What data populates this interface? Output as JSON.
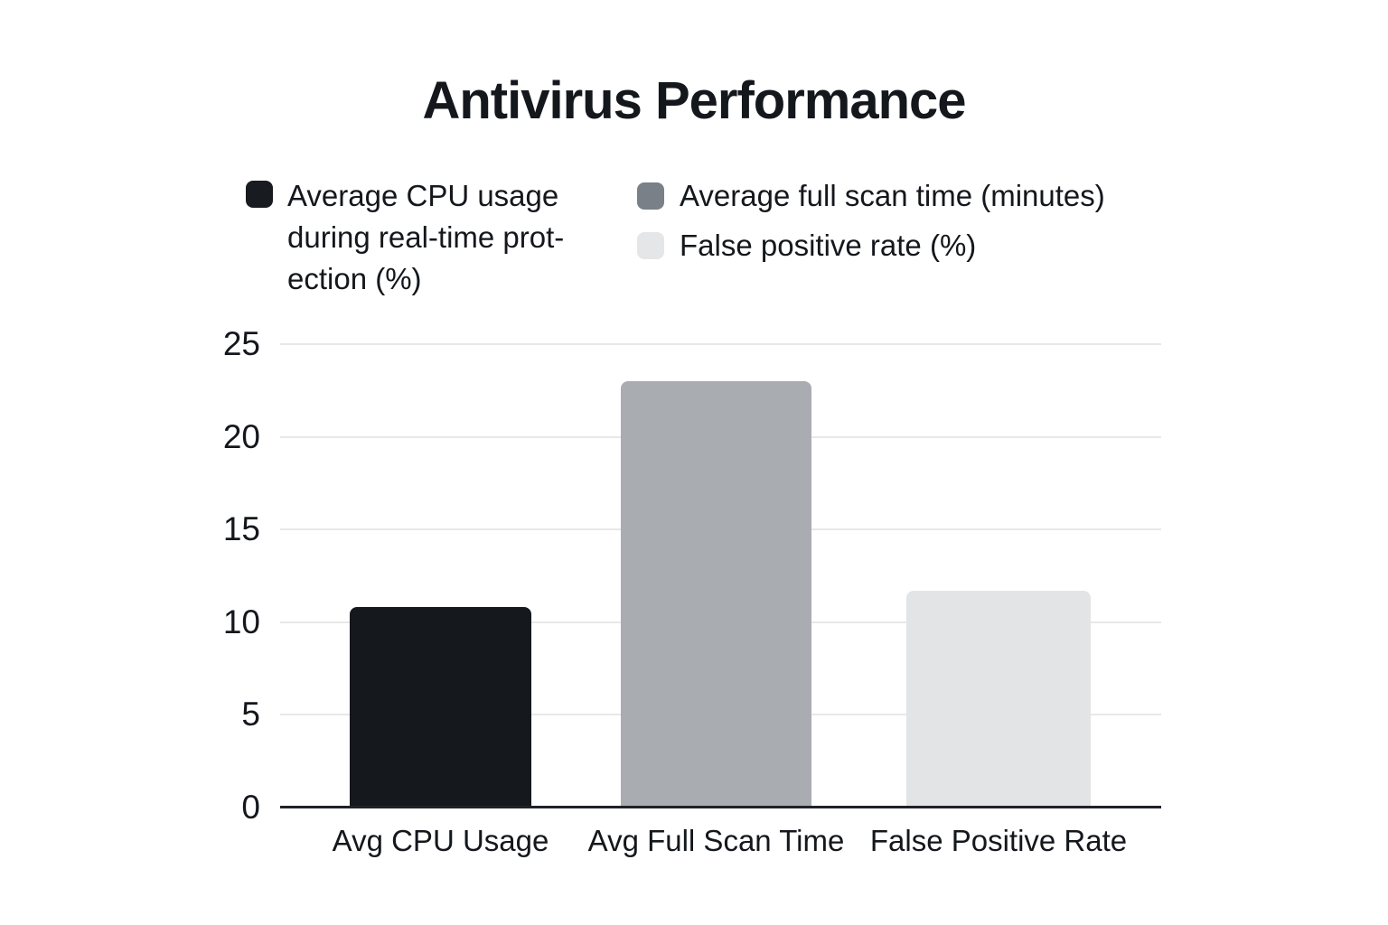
{
  "title": "Antivirus Performance",
  "legend": {
    "items": [
      {
        "label": "Average CPU usage during real-time protection (%)",
        "lines": [
          "Average CPU usage",
          "during real-time prot-",
          "ection (%)"
        ],
        "color": "#181b20"
      },
      {
        "label": "Average full scan time (minutes)",
        "color": "#798087"
      },
      {
        "label": "False positive rate (%)",
        "color": "#e4e6e8"
      }
    ]
  },
  "chart_data": {
    "type": "bar",
    "title": "Antivirus Performance",
    "categories": [
      "Avg CPU Usage",
      "Avg Full Scan Time",
      "False Positive Rate"
    ],
    "values": [
      10.8,
      23,
      11.7
    ],
    "bar_colors": [
      "#15181d",
      "#a9acb0",
      "#e2e4e6"
    ],
    "series_labels": [
      "Average CPU usage during real-time protection (%)",
      "Average full scan time (minutes)",
      "False positive rate (%)"
    ],
    "xlabel": "",
    "ylabel": "",
    "ylim": [
      0,
      25
    ],
    "yticks": [
      0,
      5,
      10,
      15,
      20,
      25
    ],
    "grid": true,
    "legend_position": "top"
  }
}
